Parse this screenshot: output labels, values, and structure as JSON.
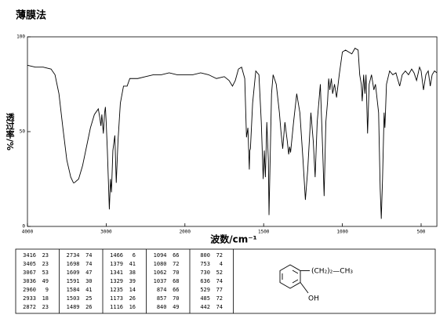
{
  "chart_data": {
    "type": "line",
    "title": "薄膜法",
    "xlabel": "波数/cm⁻¹",
    "ylabel": "透过率/%",
    "color": "#000000",
    "xlim": [
      4000,
      400
    ],
    "xticks": [
      4000,
      3000,
      2000,
      1500,
      1000,
      500
    ],
    "ylim": [
      0,
      100
    ],
    "yticks": [
      0,
      50,
      100
    ],
    "x": [
      4000,
      3900,
      3800,
      3700,
      3650,
      3600,
      3550,
      3500,
      3450,
      3416,
      3405,
      3350,
      3300,
      3250,
      3200,
      3150,
      3100,
      3080,
      3067,
      3055,
      3036,
      3020,
      3010,
      3000,
      2985,
      2960,
      2945,
      2933,
      2915,
      2890,
      2872,
      2850,
      2820,
      2780,
      2734,
      2700,
      2600,
      2500,
      2400,
      2300,
      2200,
      2100,
      2000,
      1950,
      1900,
      1850,
      1800,
      1750,
      1720,
      1698,
      1680,
      1660,
      1640,
      1620,
      1609,
      1600,
      1591,
      1588,
      1584,
      1570,
      1550,
      1530,
      1515,
      1503,
      1496,
      1489,
      1480,
      1470,
      1466,
      1460,
      1450,
      1440,
      1420,
      1400,
      1390,
      1379,
      1365,
      1350,
      1341,
      1335,
      1329,
      1310,
      1290,
      1270,
      1250,
      1235,
      1220,
      1200,
      1185,
      1173,
      1160,
      1140,
      1125,
      1116,
      1105,
      1094,
      1087,
      1080,
      1070,
      1062,
      1050,
      1037,
      1020,
      1000,
      980,
      960,
      940,
      920,
      900,
      890,
      880,
      874,
      865,
      857,
      850,
      840,
      830,
      815,
      800,
      790,
      770,
      760,
      753,
      745,
      735,
      730,
      720,
      700,
      680,
      660,
      650,
      636,
      620,
      600,
      580,
      560,
      545,
      529,
      510,
      500,
      485,
      470,
      455,
      442,
      430,
      415,
      400
    ],
    "values": [
      85,
      84,
      84,
      83,
      80,
      70,
      52,
      35,
      26,
      23,
      23,
      25,
      32,
      42,
      52,
      59,
      62,
      57,
      53,
      59,
      49,
      60,
      63,
      55,
      40,
      9,
      25,
      18,
      40,
      48,
      23,
      45,
      65,
      74,
      74,
      78,
      78,
      79,
      80,
      80,
      81,
      80,
      80,
      80,
      81,
      80,
      78,
      79,
      77,
      74,
      77,
      83,
      84,
      78,
      47,
      52,
      30,
      40,
      41,
      65,
      82,
      80,
      55,
      25,
      40,
      26,
      55,
      35,
      6,
      30,
      70,
      80,
      75,
      60,
      50,
      41,
      55,
      45,
      38,
      42,
      39,
      55,
      70,
      60,
      35,
      14,
      30,
      60,
      45,
      26,
      55,
      75,
      40,
      16,
      55,
      66,
      78,
      72,
      78,
      70,
      75,
      68,
      80,
      92,
      93,
      92,
      91,
      94,
      93,
      80,
      75,
      66,
      80,
      70,
      80,
      49,
      75,
      80,
      72,
      75,
      60,
      20,
      4,
      25,
      60,
      52,
      75,
      82,
      80,
      81,
      78,
      74,
      80,
      82,
      80,
      83,
      81,
      77,
      84,
      82,
      72,
      80,
      82,
      74,
      80,
      82,
      81
    ]
  },
  "peak_table": [
    [
      [
        3416,
        23
      ],
      [
        3405,
        23
      ],
      [
        3067,
        53
      ],
      [
        3036,
        49
      ],
      [
        2960,
        9
      ],
      [
        2933,
        18
      ],
      [
        2872,
        23
      ]
    ],
    [
      [
        2734,
        74
      ],
      [
        1698,
        74
      ],
      [
        1609,
        47
      ],
      [
        1591,
        30
      ],
      [
        1584,
        41
      ],
      [
        1503,
        25
      ],
      [
        1489,
        26
      ]
    ],
    [
      [
        1466,
        6
      ],
      [
        1379,
        41
      ],
      [
        1341,
        38
      ],
      [
        1329,
        39
      ],
      [
        1235,
        14
      ],
      [
        1173,
        26
      ],
      [
        1116,
        16
      ]
    ],
    [
      [
        1094,
        66
      ],
      [
        1080,
        72
      ],
      [
        1062,
        70
      ],
      [
        1037,
        68
      ],
      [
        874,
        66
      ],
      [
        857,
        70
      ],
      [
        840,
        49
      ]
    ],
    [
      [
        800,
        72
      ],
      [
        753,
        4
      ],
      [
        730,
        52
      ],
      [
        636,
        74
      ],
      [
        529,
        77
      ],
      [
        485,
        72
      ],
      [
        442,
        74
      ]
    ]
  ],
  "structure": {
    "substituent": "(CH₂)₂—CH₃",
    "group": "OH"
  }
}
